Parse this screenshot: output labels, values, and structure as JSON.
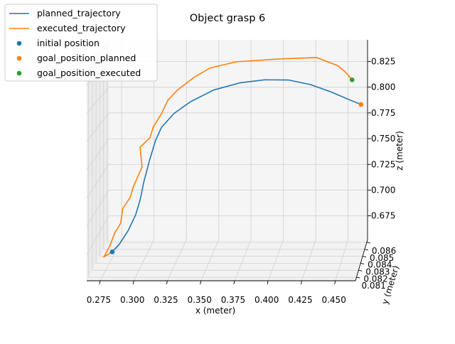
{
  "chart_data": {
    "type": "line",
    "projection": "3d",
    "title": "Object grasp 6",
    "xlabel": "x (meter)",
    "ylabel": "y (meter)",
    "zlabel": "z (meter)",
    "xticks": [
      "0.275",
      "0.300",
      "0.325",
      "0.350",
      "0.375",
      "0.400",
      "0.425",
      "0.450"
    ],
    "yticks": [
      "0.081",
      "0.082",
      "0.083",
      "0.084",
      "0.085",
      "0.086"
    ],
    "zticks": [
      "0.675",
      "0.700",
      "0.725",
      "0.750",
      "0.775",
      "0.800",
      "0.825"
    ],
    "xlim": [
      0.265,
      0.465
    ],
    "zlim": [
      0.652,
      0.846
    ],
    "ylim": [
      0.0805,
      0.0864
    ],
    "grid": true,
    "legend_position": "top-left",
    "legend": [
      {
        "label": "planned_trajectory",
        "kind": "line",
        "color": "#1f77b4"
      },
      {
        "label": "executed_trajectory",
        "kind": "line",
        "color": "#ff7f0e"
      },
      {
        "label": "initial position",
        "kind": "marker",
        "color": "#1f77b4"
      },
      {
        "label": "goal_position_planned",
        "kind": "marker",
        "color": "#ff7f0e"
      },
      {
        "label": "goal_position_executed",
        "kind": "marker",
        "color": "#2ca02c"
      }
    ],
    "series": [
      {
        "name": "planned_trajectory",
        "color": "#1f77b4",
        "points": [
          {
            "x": 0.281,
            "y": 0.0816,
            "z": 0.671
          },
          {
            "x": 0.286,
            "y": 0.0818,
            "z": 0.677
          },
          {
            "x": 0.292,
            "y": 0.082,
            "z": 0.688
          },
          {
            "x": 0.297,
            "y": 0.0822,
            "z": 0.701
          },
          {
            "x": 0.3,
            "y": 0.0824,
            "z": 0.714
          },
          {
            "x": 0.302,
            "y": 0.0826,
            "z": 0.728
          },
          {
            "x": 0.306,
            "y": 0.0828,
            "z": 0.748
          },
          {
            "x": 0.31,
            "y": 0.083,
            "z": 0.765
          },
          {
            "x": 0.314,
            "y": 0.0832,
            "z": 0.776
          },
          {
            "x": 0.323,
            "y": 0.0834,
            "z": 0.788
          },
          {
            "x": 0.335,
            "y": 0.0836,
            "z": 0.798
          },
          {
            "x": 0.352,
            "y": 0.0838,
            "z": 0.808
          },
          {
            "x": 0.372,
            "y": 0.084,
            "z": 0.814
          },
          {
            "x": 0.39,
            "y": 0.0842,
            "z": 0.816
          },
          {
            "x": 0.408,
            "y": 0.0844,
            "z": 0.815
          },
          {
            "x": 0.424,
            "y": 0.0846,
            "z": 0.81
          },
          {
            "x": 0.44,
            "y": 0.0848,
            "z": 0.802
          },
          {
            "x": 0.455,
            "y": 0.085,
            "z": 0.793
          },
          {
            "x": 0.462,
            "y": 0.0851,
            "z": 0.789
          }
        ]
      },
      {
        "name": "executed_trajectory",
        "color": "#ff7f0e",
        "points": [
          {
            "x": 0.281,
            "y": 0.0816,
            "z": 0.671
          },
          {
            "x": 0.275,
            "y": 0.0815,
            "z": 0.667
          },
          {
            "x": 0.279,
            "y": 0.0817,
            "z": 0.676
          },
          {
            "x": 0.282,
            "y": 0.0819,
            "z": 0.686
          },
          {
            "x": 0.286,
            "y": 0.0821,
            "z": 0.694
          },
          {
            "x": 0.287,
            "y": 0.0823,
            "z": 0.706
          },
          {
            "x": 0.292,
            "y": 0.0825,
            "z": 0.715
          },
          {
            "x": 0.294,
            "y": 0.0827,
            "z": 0.724
          },
          {
            "x": 0.3,
            "y": 0.0829,
            "z": 0.741
          },
          {
            "x": 0.298,
            "y": 0.0831,
            "z": 0.758
          },
          {
            "x": 0.305,
            "y": 0.0833,
            "z": 0.766
          },
          {
            "x": 0.307,
            "y": 0.0835,
            "z": 0.775
          },
          {
            "x": 0.313,
            "y": 0.0837,
            "z": 0.787
          },
          {
            "x": 0.317,
            "y": 0.0839,
            "z": 0.798
          },
          {
            "x": 0.324,
            "y": 0.0841,
            "z": 0.807
          },
          {
            "x": 0.336,
            "y": 0.0843,
            "z": 0.818
          },
          {
            "x": 0.348,
            "y": 0.0845,
            "z": 0.826
          },
          {
            "x": 0.367,
            "y": 0.0847,
            "z": 0.831
          },
          {
            "x": 0.4,
            "y": 0.0849,
            "z": 0.833
          },
          {
            "x": 0.428,
            "y": 0.085,
            "z": 0.834
          },
          {
            "x": 0.444,
            "y": 0.0851,
            "z": 0.826
          },
          {
            "x": 0.45,
            "y": 0.0851,
            "z": 0.82
          },
          {
            "x": 0.455,
            "y": 0.0852,
            "z": 0.812
          }
        ]
      }
    ],
    "markers": [
      {
        "name": "initial position",
        "color": "#1f77b4",
        "x": 0.281,
        "y": 0.0816,
        "z": 0.671
      },
      {
        "name": "goal_position_planned",
        "color": "#ff7f0e",
        "x": 0.462,
        "y": 0.0851,
        "z": 0.789
      },
      {
        "name": "goal_position_executed",
        "color": "#2ca02c",
        "x": 0.455,
        "y": 0.0852,
        "z": 0.812
      }
    ]
  }
}
